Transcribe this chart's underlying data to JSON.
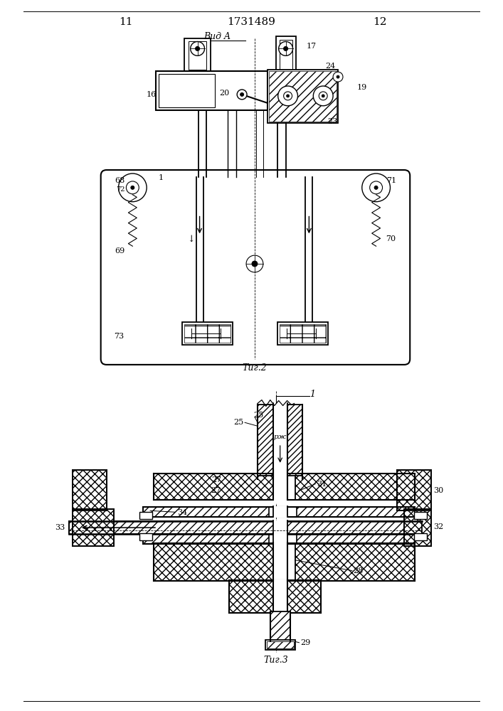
{
  "page_number_left": "11",
  "page_number_right": "12",
  "patent_number": "1731489",
  "fig2_label": "Τиг.2",
  "fig3_label": "Τиг.3",
  "vid_a_label": "Вид A",
  "background_color": "#ffffff"
}
